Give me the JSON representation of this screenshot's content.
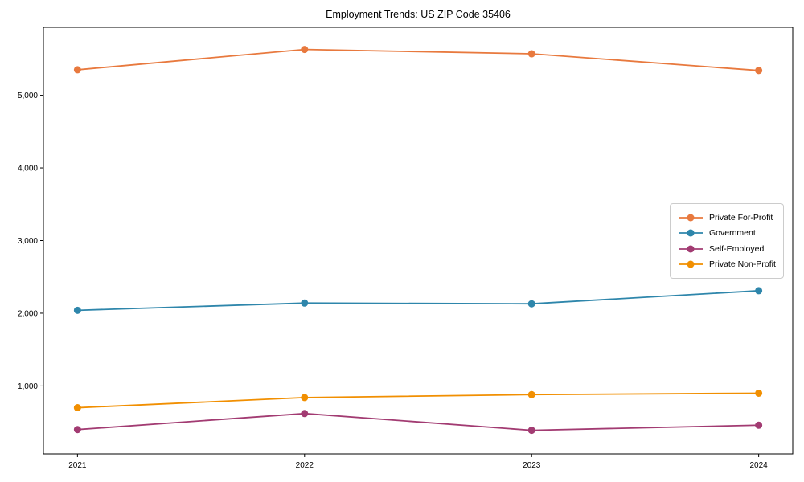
{
  "chart_data": {
    "type": "line",
    "title": "Employment Trends: US ZIP Code 35406",
    "xlabel": "",
    "ylabel": "",
    "x": [
      2021,
      2022,
      2023,
      2024
    ],
    "xtick_labels": [
      "2021",
      "2022",
      "2023",
      "2024"
    ],
    "series": [
      {
        "name": "Private For-Profit",
        "color": "#E8793E",
        "values": [
          5350,
          5630,
          5570,
          5340
        ]
      },
      {
        "name": "Government",
        "color": "#2E86AB",
        "values": [
          2040,
          2140,
          2130,
          2310
        ]
      },
      {
        "name": "Self-Employed",
        "color": "#A23B72",
        "values": [
          400,
          620,
          390,
          460
        ]
      },
      {
        "name": "Private Non-Profit",
        "color": "#F18F01",
        "values": [
          700,
          840,
          880,
          900
        ]
      }
    ],
    "xlim": [
      2020.85,
      2024.15
    ],
    "ylim": [
      65,
      5935
    ],
    "yticks": {
      "values": [
        1000,
        2000,
        3000,
        4000,
        5000
      ],
      "labels": [
        "1,000",
        "2,000",
        "3,000",
        "4,000",
        "5,000"
      ]
    },
    "grid": false,
    "legend_position": "center right",
    "axis_color": "#000000",
    "background_color": "#ffffff"
  }
}
